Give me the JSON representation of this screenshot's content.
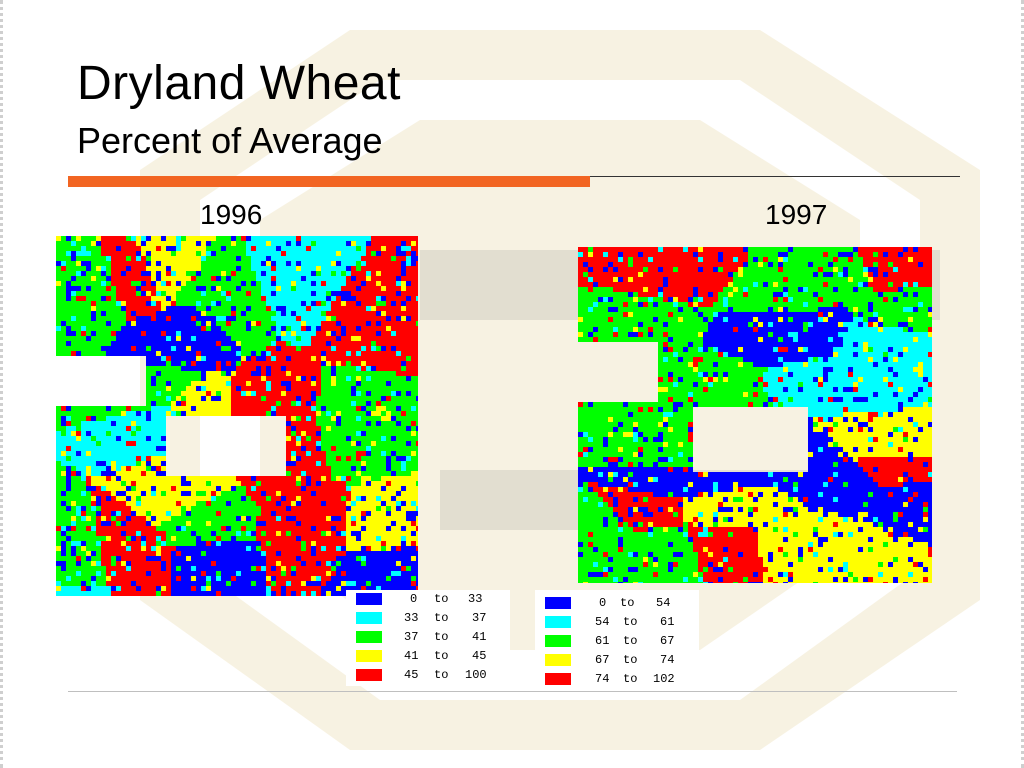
{
  "slide": {
    "title": "Dryland Wheat",
    "subtitle": "Percent of Average"
  },
  "colors": {
    "accent_rule": "#f26522",
    "class_1": "#0000ff",
    "class_2": "#00ffff",
    "class_3": "#00ff00",
    "class_4": "#ffff00",
    "class_5": "#ff0000"
  },
  "maps": [
    {
      "year": "1996",
      "legend": [
        {
          "low": "0",
          "sep": "to",
          "high": "33",
          "color": "#0000ff"
        },
        {
          "low": "33",
          "sep": "to",
          "high": "37",
          "color": "#00ffff"
        },
        {
          "low": "37",
          "sep": "to",
          "high": "41",
          "color": "#00ff00"
        },
        {
          "low": "41",
          "sep": "to",
          "high": "45",
          "color": "#ffff00"
        },
        {
          "low": "45",
          "sep": "to",
          "high": "100",
          "color": "#ff0000"
        }
      ]
    },
    {
      "year": "1997",
      "legend": [
        {
          "low": "0",
          "sep": "to",
          "high": "54",
          "color": "#0000ff"
        },
        {
          "low": "54",
          "sep": "to",
          "high": "61",
          "color": "#00ffff"
        },
        {
          "low": "61",
          "sep": "to",
          "high": "67",
          "color": "#00ff00"
        },
        {
          "low": "67",
          "sep": "to",
          "high": "74",
          "color": "#ffff00"
        },
        {
          "low": "74",
          "sep": "to",
          "high": "102",
          "color": "#ff0000"
        }
      ]
    }
  ]
}
